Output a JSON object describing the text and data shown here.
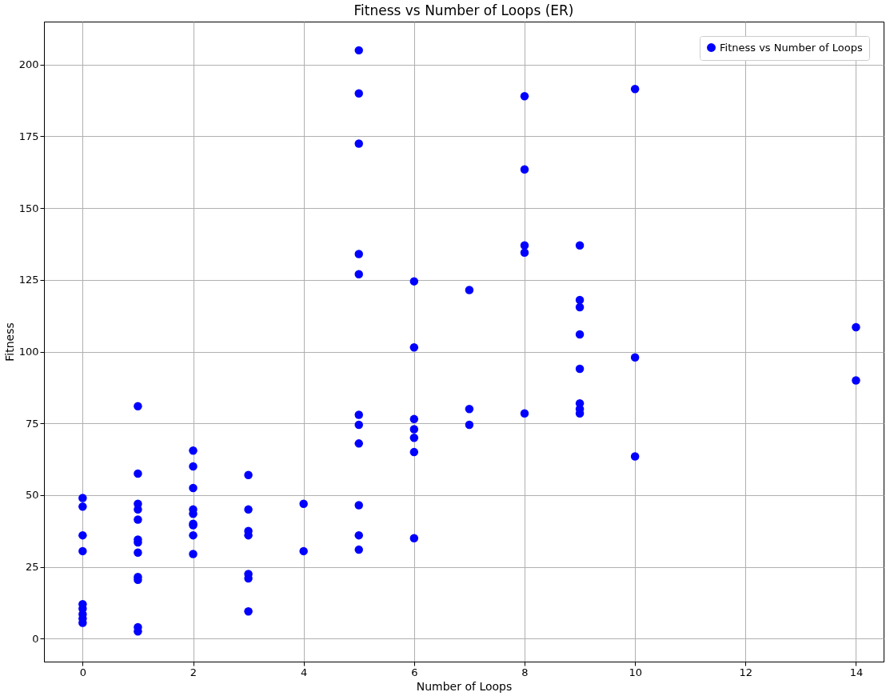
{
  "chart_data": {
    "type": "scatter",
    "title": "Fitness vs Number of Loops (ER)",
    "xlabel": "Number of Loops",
    "ylabel": "Fitness",
    "xlim": [
      -0.7,
      14.5
    ],
    "ylim": [
      -8,
      215
    ],
    "xticks": [
      0,
      2,
      4,
      6,
      8,
      10,
      12,
      14
    ],
    "yticks": [
      0,
      25,
      50,
      75,
      100,
      125,
      150,
      175,
      200
    ],
    "grid": true,
    "legend": "top right",
    "marker": "circle",
    "series": [
      {
        "name": "Fitness vs Number of Loops",
        "color": "#0000ff",
        "x": [
          0,
          0,
          0,
          0,
          0,
          0,
          0,
          0,
          0,
          1,
          1,
          1,
          1,
          1,
          1,
          1,
          1,
          1,
          1,
          1,
          1,
          2,
          2,
          2,
          2,
          2,
          2,
          2,
          2,
          2,
          3,
          3,
          3,
          3,
          3,
          3,
          3,
          4,
          4,
          5,
          5,
          5,
          5,
          5,
          5,
          5,
          5,
          5,
          5,
          5,
          6,
          6,
          6,
          6,
          6,
          6,
          6,
          7,
          7,
          7,
          8,
          8,
          8,
          8,
          8,
          9,
          9,
          9,
          9,
          9,
          9,
          9,
          9,
          10,
          10,
          10,
          14,
          14
        ],
        "values": [
          49,
          46,
          36,
          30.5,
          12,
          10.5,
          8.5,
          7,
          5.5,
          81,
          57.5,
          47,
          45,
          41.5,
          34.5,
          33.5,
          30,
          21.5,
          20.5,
          4,
          2.5,
          65.5,
          60,
          52.5,
          45,
          43.5,
          40,
          39.5,
          36,
          29.5,
          57,
          45,
          37.5,
          36,
          22.5,
          21,
          9.5,
          47,
          30.5,
          205,
          190,
          172.5,
          134,
          127,
          78,
          74.5,
          68,
          46.5,
          36,
          31,
          124.5,
          101.5,
          76.5,
          73,
          70,
          65,
          35,
          121.5,
          80,
          74.5,
          189,
          163.5,
          137,
          134.5,
          78.5,
          137,
          118,
          115.5,
          106,
          94,
          82,
          80,
          78.5,
          191.5,
          98,
          63.5,
          108.5,
          90
        ]
      }
    ]
  }
}
